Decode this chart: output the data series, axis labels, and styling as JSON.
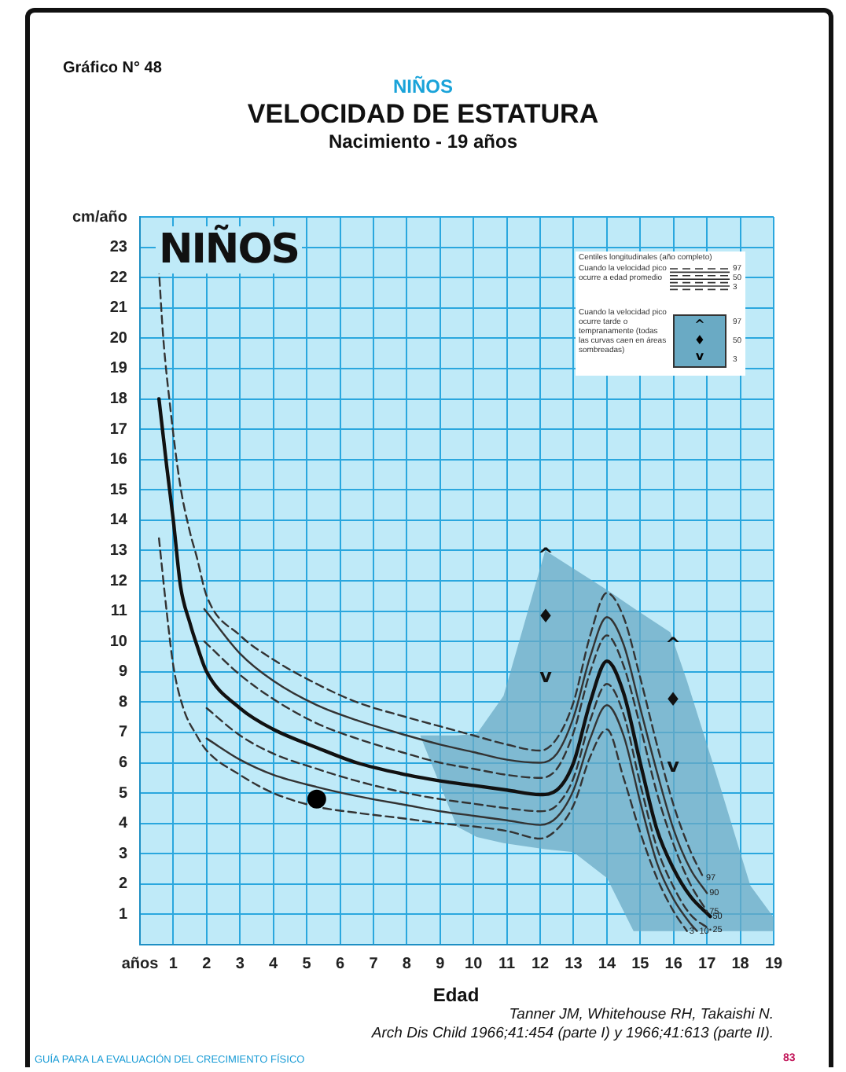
{
  "chart_data": {
    "type": "line",
    "title": "VELOCIDAD DE ESTATURA",
    "subtitle": "Nacimiento - 19 años",
    "xlabel": "Edad",
    "annotations": [
      "Gráfico N° 48",
      "NIÑOS",
      "NIÑOS",
      "Centiles longitudinales (año completo)",
      "Cuando la velocidad pico ocurre a edad promedio",
      "Cuando la velocidad pico ocurre tarde o tempranamente (todas las curvas caen en áreas sombreadas)",
      "Tanner JM, Whitehouse RH, Takaishi N.",
      "Arch Dis Child 1966;41:454 (parte I) y 1966;41:613 (parte II).",
      "GUÍA PARA LA EVALUACIÓN DEL CRECIMIENTO FÍSICO",
      "83",
      "^",
      "♦",
      "v",
      "^",
      "♦",
      "v"
    ],
    "xlim": [
      0,
      19
    ],
    "ylim": [
      0,
      24
    ],
    "xticks": [
      {
        "value": 0,
        "label": "años"
      },
      1,
      2,
      3,
      4,
      5,
      6,
      7,
      8,
      9,
      10,
      11,
      12,
      13,
      14,
      15,
      16,
      17,
      18,
      19
    ],
    "yticks": [
      1,
      2,
      3,
      4,
      5,
      6,
      7,
      8,
      9,
      10,
      11,
      12,
      13,
      14,
      15,
      16,
      17,
      18,
      19,
      20,
      21,
      22,
      23,
      {
        "value": 24,
        "label": "cm/año"
      }
    ],
    "grid": true,
    "legend": false,
    "marker": "none",
    "series": [
      {
        "type": "area",
        "color": "#6aaac4",
        "x": [
          8.4,
          9.5,
          10.1,
          10.9,
          11.5,
          12.15,
          13,
          14,
          14.8,
          15.9,
          16.4,
          17.4,
          18.3,
          19
        ],
        "values": [
          null,
          null,
          null,
          null,
          null,
          null,
          null,
          null,
          null,
          null,
          null,
          null,
          null,
          null
        ],
        "upper": [
          6.9,
          6.9,
          6.95,
          8.2,
          10.5,
          13.0,
          12.4,
          11.7,
          11.1,
          10.3,
          8.7,
          5.2,
          1.95,
          0.9
        ],
        "lower": [
          6.9,
          3.9,
          3.55,
          3.35,
          3.25,
          3.15,
          3.05,
          2.2,
          0.45,
          0.45,
          0.45,
          0.45,
          0.45,
          0.45
        ]
      },
      {
        "name": "97",
        "color": "#333333",
        "line_style": "dashed",
        "x": [
          0.56,
          0.7,
          0.9,
          1.2,
          1.5,
          1.7,
          2,
          3,
          4,
          5.3,
          6.5,
          8,
          9,
          10,
          11,
          12,
          12.5,
          13,
          13.5,
          14,
          14.5,
          15,
          15.5,
          16,
          16.5,
          16.9
        ],
        "values": [
          22.4,
          20.0,
          17.8,
          15.2,
          13.6,
          12.8,
          11.5,
          10.2,
          9.4,
          8.6,
          8.0,
          7.5,
          7.2,
          6.9,
          6.6,
          6.4,
          6.8,
          8.0,
          10.2,
          11.6,
          10.8,
          8.8,
          6.6,
          4.6,
          3.1,
          2.2
        ]
      },
      {
        "name": "90",
        "color": "#333333",
        "line_style": "solid",
        "x": [
          1.93,
          3,
          4,
          5.3,
          6.5,
          8,
          9,
          10,
          11,
          12,
          12.5,
          13,
          13.5,
          14,
          14.5,
          15,
          15.5,
          16,
          16.5,
          17
        ],
        "values": [
          11.07,
          9.6,
          8.7,
          7.9,
          7.4,
          6.9,
          6.6,
          6.35,
          6.1,
          6.0,
          6.3,
          7.5,
          9.5,
          10.8,
          9.9,
          7.8,
          5.7,
          3.8,
          2.5,
          1.7
        ]
      },
      {
        "name": "75",
        "color": "#333333",
        "line_style": "dashed",
        "x": [
          1.93,
          3,
          4,
          5.3,
          6.5,
          8,
          9,
          10,
          11,
          12,
          12.5,
          13,
          13.5,
          14,
          14.5,
          15,
          15.5,
          16,
          16.5,
          17
        ],
        "values": [
          10.0,
          8.9,
          8.1,
          7.3,
          6.8,
          6.3,
          6.0,
          5.8,
          5.6,
          5.5,
          5.8,
          7.0,
          9.0,
          10.2,
          9.2,
          7.2,
          5.0,
          3.3,
          2.0,
          1.1
        ]
      },
      {
        "name": "50",
        "color": "#111111",
        "line_style": "solid",
        "x": [
          0.57,
          0.8,
          1.0,
          1.22,
          1.5,
          1.7,
          2,
          3,
          4,
          5.3,
          6.5,
          8,
          9,
          10,
          11,
          12,
          12.5,
          13,
          13.5,
          14,
          14.5,
          15,
          15.5,
          16,
          16.5,
          17.1
        ],
        "values": [
          18.0,
          15.8,
          14.0,
          11.8,
          10.6,
          9.9,
          9.0,
          7.8,
          7.1,
          6.5,
          6.0,
          5.6,
          5.4,
          5.25,
          5.1,
          4.95,
          5.1,
          6.0,
          8.0,
          9.35,
          8.3,
          6.0,
          3.8,
          2.5,
          1.6,
          0.93
        ]
      },
      {
        "name": "25",
        "color": "#333333",
        "line_style": "dashed",
        "x": [
          2,
          3,
          4,
          5.3,
          6.5,
          8,
          9,
          10,
          11,
          12,
          12.5,
          13,
          13.5,
          14,
          14.5,
          15,
          15.5,
          16,
          16.5,
          17.1
        ],
        "values": [
          7.8,
          6.9,
          6.3,
          5.8,
          5.4,
          5.0,
          4.8,
          4.65,
          4.5,
          4.4,
          4.6,
          5.5,
          7.4,
          8.6,
          7.6,
          5.3,
          3.2,
          1.9,
          1.0,
          0.5
        ]
      },
      {
        "name": "10",
        "color": "#333333",
        "line_style": "solid",
        "x": [
          2,
          3,
          4,
          5.3,
          6.5,
          8,
          9,
          10,
          11,
          12,
          12.5,
          13,
          13.5,
          14,
          14.5,
          15,
          15.5,
          16,
          16.5,
          16.7
        ],
        "values": [
          6.8,
          6.1,
          5.6,
          5.2,
          4.9,
          4.6,
          4.4,
          4.25,
          4.1,
          3.95,
          4.2,
          5.1,
          6.8,
          7.9,
          6.9,
          4.7,
          2.7,
          1.5,
          0.7,
          0.45
        ]
      },
      {
        "name": "3",
        "color": "#333333",
        "line_style": "dashed",
        "x": [
          0.57,
          0.8,
          1.0,
          1.3,
          1.7,
          2,
          3,
          4,
          5.3,
          6.5,
          8,
          9,
          10,
          11,
          12,
          12.5,
          13,
          13.5,
          14,
          14.5,
          15,
          15.5,
          16,
          16.4
        ],
        "values": [
          13.4,
          11.0,
          9.2,
          7.8,
          6.9,
          6.4,
          5.6,
          5.0,
          4.55,
          4.35,
          4.15,
          4.0,
          3.9,
          3.75,
          3.5,
          3.8,
          4.6,
          6.2,
          7.1,
          5.5,
          3.7,
          2.2,
          1.1,
          0.45
        ]
      },
      {
        "type": "scatter",
        "marker": "circle",
        "color": "#000000",
        "x": [
          5.3
        ],
        "values": [
          4.8
        ]
      }
    ]
  }
}
